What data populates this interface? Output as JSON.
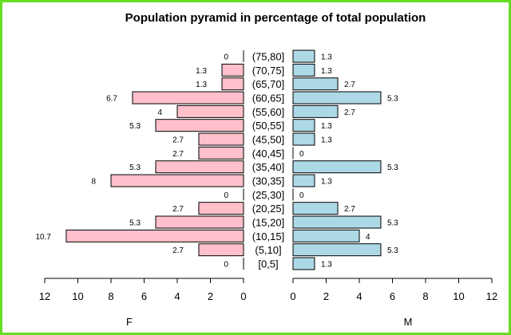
{
  "chart_data": {
    "type": "bar",
    "orientation": "horizontal-pyramid",
    "title": "Population pyramid in percentage of total population",
    "categories": [
      "[0,5]",
      "(5,10]",
      "(10,15]",
      "(15,20]",
      "(20,25]",
      "(25,30]",
      "(30,35]",
      "(35,40]",
      "(40,45]",
      "(45,50]",
      "(50,55]",
      "(55,60]",
      "(60,65]",
      "(65,70]",
      "(70,75]",
      "(75,80]"
    ],
    "series": [
      {
        "name": "F",
        "color": "#ffc0cb",
        "values": [
          0,
          2.7,
          10.7,
          5.3,
          2.7,
          0,
          8,
          5.3,
          2.7,
          2.7,
          5.3,
          4,
          6.7,
          1.3,
          1.3,
          0
        ]
      },
      {
        "name": "M",
        "color": "#add8e6",
        "values": [
          1.3,
          5.3,
          4,
          5.3,
          2.7,
          0,
          1.3,
          5.3,
          0,
          1.3,
          1.3,
          2.7,
          5.3,
          2.7,
          1.3,
          1.3
        ]
      }
    ],
    "left_axis": {
      "label": "F",
      "ticks": [
        12,
        10,
        8,
        6,
        4,
        2,
        0
      ],
      "range": [
        0,
        12
      ],
      "reversed": true
    },
    "right_axis": {
      "label": "M",
      "ticks": [
        0,
        2,
        4,
        6,
        8,
        10,
        12
      ],
      "range": [
        0,
        12
      ]
    },
    "legend": "none",
    "grid": false
  },
  "frame_color": "#66dd22"
}
